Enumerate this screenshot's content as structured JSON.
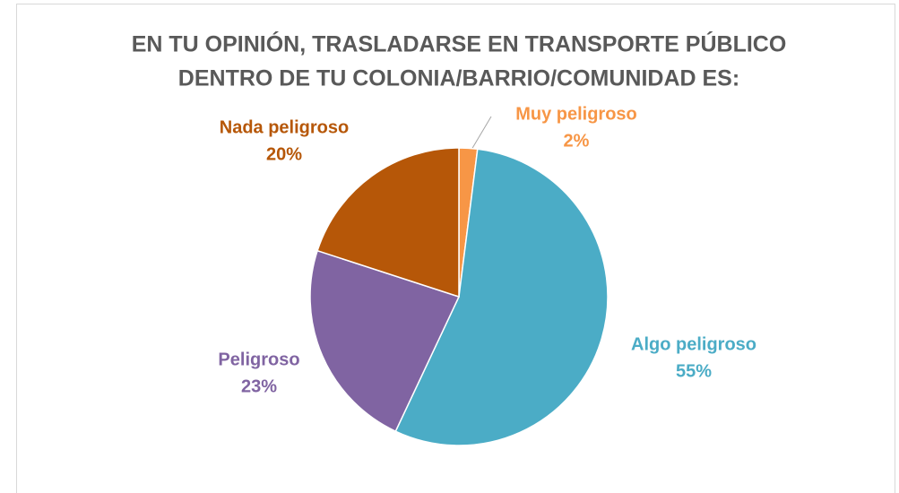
{
  "chart_data": {
    "type": "pie",
    "title": [
      "EN TU OPINIÓN, TRASLADARSE EN TRANSPORTE PÚBLICO",
      "DENTRO DE TU COLONIA/BARRIO/COMUNIDAD ES:"
    ],
    "categories": [
      "Muy peligroso",
      "Algo peligroso",
      "Peligroso",
      "Nada peligroso"
    ],
    "values": [
      2,
      55,
      23,
      20
    ],
    "value_labels": [
      "2%",
      "55%",
      "23%",
      "20%"
    ],
    "colors": [
      "#f79646",
      "#4bacc6",
      "#8064a2",
      "#b65708"
    ]
  }
}
